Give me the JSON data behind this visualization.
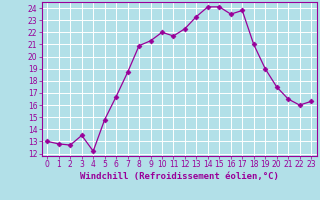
{
  "x": [
    0,
    1,
    2,
    3,
    4,
    5,
    6,
    7,
    8,
    9,
    10,
    11,
    12,
    13,
    14,
    15,
    16,
    17,
    18,
    19,
    20,
    21,
    22,
    23
  ],
  "y": [
    13.0,
    12.8,
    12.7,
    13.5,
    12.2,
    14.8,
    16.7,
    18.7,
    20.9,
    21.3,
    22.0,
    21.7,
    22.3,
    23.3,
    24.1,
    24.1,
    23.5,
    23.8,
    21.0,
    19.0,
    17.5,
    16.5,
    16.0,
    16.3
  ],
  "line_color": "#990099",
  "marker": "D",
  "marker_size": 2.5,
  "bg_color": "#b2e0e8",
  "grid_color": "#ffffff",
  "xlabel": "Windchill (Refroidissement éolien,°C)",
  "xlim": [
    -0.5,
    23.5
  ],
  "ylim": [
    11.8,
    24.5
  ],
  "yticks": [
    12,
    13,
    14,
    15,
    16,
    17,
    18,
    19,
    20,
    21,
    22,
    23,
    24
  ],
  "xticks": [
    0,
    1,
    2,
    3,
    4,
    5,
    6,
    7,
    8,
    9,
    10,
    11,
    12,
    13,
    14,
    15,
    16,
    17,
    18,
    19,
    20,
    21,
    22,
    23
  ],
  "tick_fontsize": 5.5,
  "xlabel_fontsize": 6.5,
  "label_color": "#990099",
  "spine_color": "#990099"
}
